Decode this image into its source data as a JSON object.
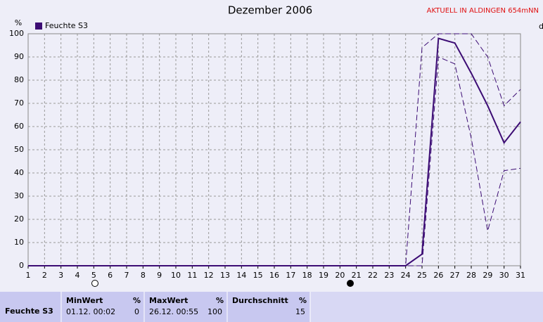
{
  "chart_data": {
    "type": "line",
    "title": "Dezember 2006",
    "subtitle": "AKTUELL IN ALDINGEN 654mNN",
    "y_label": "%",
    "y2_label": "d",
    "x": [
      1,
      2,
      3,
      4,
      5,
      6,
      7,
      8,
      9,
      10,
      11,
      12,
      13,
      14,
      15,
      16,
      17,
      18,
      19,
      20,
      21,
      22,
      23,
      24,
      25,
      26,
      27,
      28,
      29,
      30,
      31
    ],
    "series": [
      {
        "name": "Feuchte S3",
        "color": "#3c0c74",
        "style": "solid",
        "values": [
          0,
          0,
          0,
          0,
          0,
          0,
          0,
          0,
          0,
          0,
          0,
          0,
          0,
          0,
          0,
          0,
          0,
          0,
          0,
          0,
          0,
          0,
          0,
          0,
          5,
          98,
          96,
          83,
          69,
          53,
          62
        ]
      },
      {
        "color": "#3c0c74",
        "style": "dashed",
        "values": [
          0,
          0,
          0,
          0,
          0,
          0,
          0,
          0,
          0,
          0,
          0,
          0,
          0,
          0,
          0,
          0,
          0,
          0,
          0,
          0,
          0,
          0,
          0,
          0,
          94,
          100,
          100,
          100,
          90,
          69,
          76
        ]
      },
      {
        "color": "#3c0c74",
        "style": "dashed",
        "values": [
          0,
          0,
          0,
          0,
          0,
          0,
          0,
          0,
          0,
          0,
          0,
          0,
          0,
          0,
          0,
          0,
          0,
          0,
          0,
          0,
          0,
          0,
          0,
          0,
          0,
          90,
          87,
          55,
          15,
          41,
          42
        ]
      }
    ],
    "xlim": [
      1,
      31
    ],
    "xticks": [
      1,
      2,
      3,
      4,
      5,
      6,
      7,
      8,
      9,
      10,
      11,
      12,
      13,
      14,
      15,
      16,
      17,
      18,
      19,
      20,
      21,
      22,
      23,
      24,
      25,
      26,
      27,
      28,
      29,
      30,
      31
    ],
    "ylim": [
      0,
      100
    ],
    "yticks": [
      0,
      10,
      20,
      30,
      40,
      50,
      60,
      70,
      80,
      90,
      100
    ],
    "grid": true,
    "legend": "top-left"
  },
  "table": {
    "label": "Feuchte S3",
    "columns": [
      {
        "header": "MinWert",
        "unit": "%",
        "time": "01.12.  00:02",
        "value": 0
      },
      {
        "header": "MaxWert",
        "unit": "%",
        "time": "26.12.  00:55",
        "value": 100
      },
      {
        "header": "Durchschnitt",
        "unit": "%",
        "value": 15
      }
    ]
  }
}
